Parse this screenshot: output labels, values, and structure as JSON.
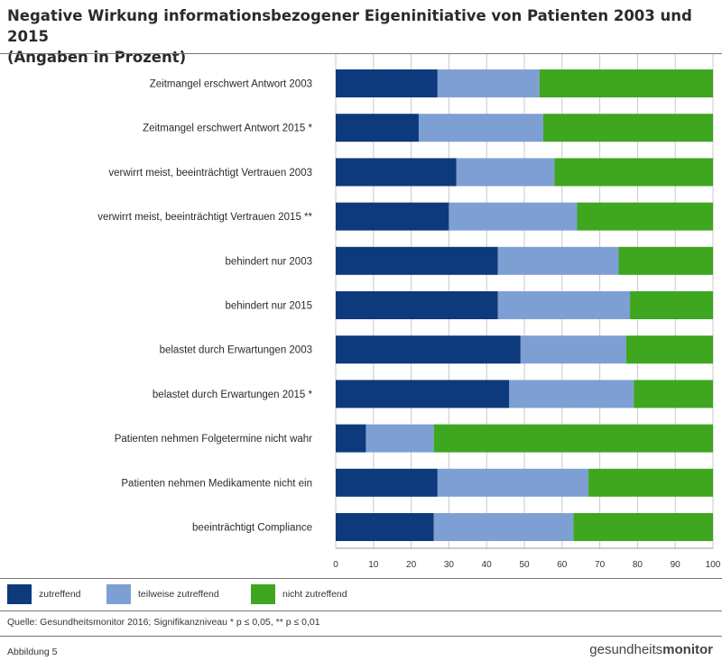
{
  "title_line1": "Negative Wirkung informationsbezogener Eigeninitiative von Patienten 2003 und 2015",
  "title_line2": "(Angaben in Prozent)",
  "chart_data": {
    "type": "bar",
    "orientation": "horizontal",
    "stacked": true,
    "categories": [
      "Zeitmangel erschwert Antwort 2003",
      "Zeitmangel erschwert Antwort 2015 *",
      "verwirrt meist, beeinträchtigt Vertrauen 2003",
      "verwirrt meist, beeinträchtigt Vertrauen 2015 **",
      "behindert nur 2003",
      "behindert nur 2015",
      "belastet durch Erwartungen 2003",
      "belastet durch Erwartungen 2015 *",
      "Patienten nehmen Folgetermine nicht wahr",
      "Patienten nehmen Medikamente nicht ein",
      "beeinträchtigt Compliance"
    ],
    "series": [
      {
        "name": "zutreffend",
        "color": "#0d3a7c",
        "values": [
          27,
          22,
          32,
          30,
          43,
          43,
          49,
          46,
          8,
          27,
          26
        ]
      },
      {
        "name": "teilweise zutreffend",
        "color": "#7d9fd3",
        "values": [
          27,
          33,
          26,
          34,
          32,
          35,
          28,
          33,
          18,
          40,
          37
        ]
      },
      {
        "name": "nicht zutreffend",
        "color": "#3ea61f",
        "values": [
          46,
          45,
          42,
          36,
          25,
          22,
          23,
          21,
          74,
          33,
          37
        ]
      }
    ],
    "xlim": [
      0,
      100
    ],
    "xticks": [
      0,
      10,
      20,
      30,
      40,
      50,
      60,
      70,
      80,
      90,
      100
    ],
    "grid": true,
    "legend_position": "bottom"
  },
  "source": "Quelle: Gesundheitsmonitor 2016; Signifikanzniveau * p ≤ 0,05, ** p ≤ 0,01",
  "figure_label": "Abbildung 5",
  "brand": {
    "light": "gesundheits",
    "bold": "monitor"
  }
}
